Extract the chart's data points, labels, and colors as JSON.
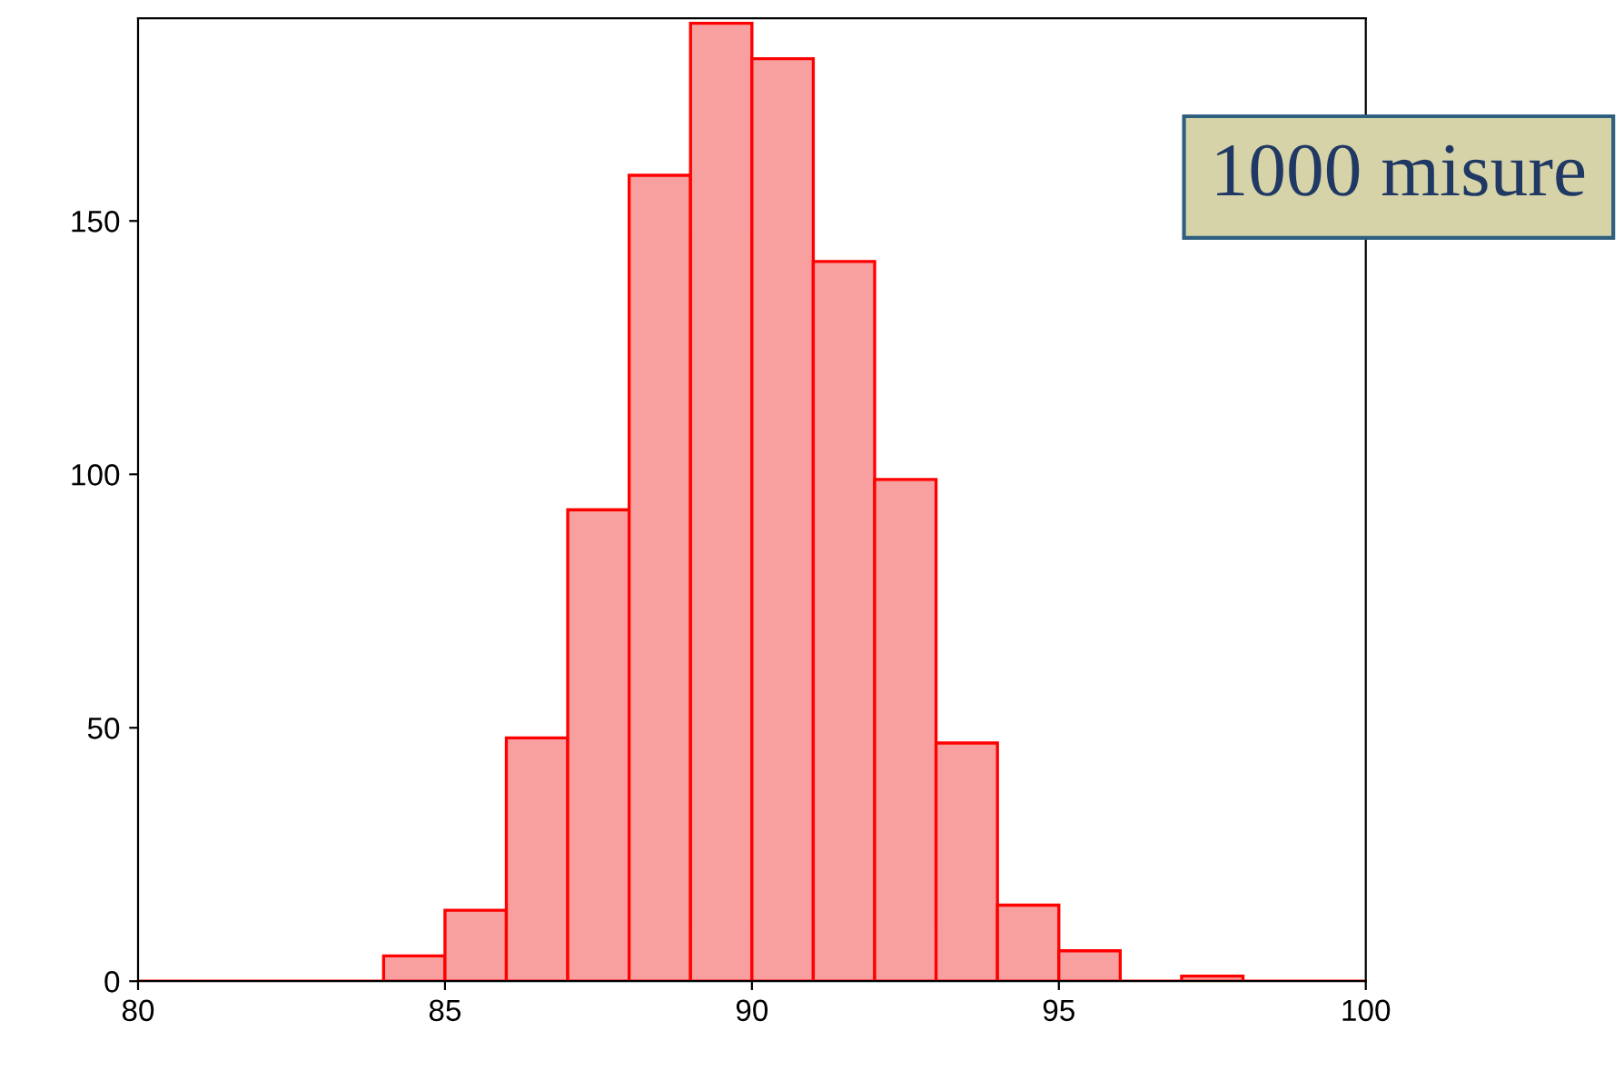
{
  "chart_data": {
    "type": "histogram",
    "bins": [
      80,
      81,
      82,
      83,
      84,
      85,
      86,
      87,
      88,
      89,
      90,
      91,
      92,
      93,
      94,
      95,
      96,
      97,
      98,
      99,
      100
    ],
    "values": [
      0,
      0,
      0,
      0,
      5,
      14,
      48,
      93,
      159,
      189,
      182,
      142,
      99,
      47,
      15,
      6,
      0,
      1,
      0,
      0
    ],
    "color": "#ff0000",
    "xlim": [
      80,
      100
    ],
    "xticks": [
      80,
      85,
      90,
      95,
      100
    ],
    "ylim": [
      0,
      190
    ],
    "yticks": [
      0,
      50,
      100,
      150
    ],
    "grid": false,
    "annotations": [
      "1000 misure"
    ]
  }
}
